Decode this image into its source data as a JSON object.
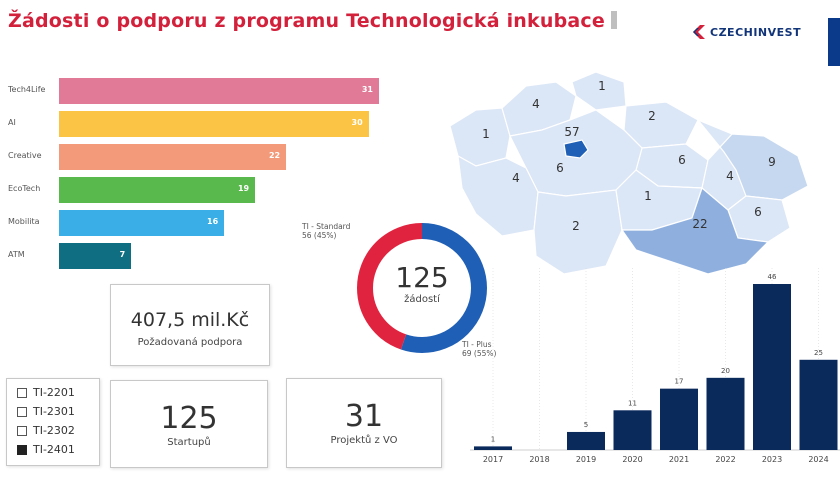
{
  "header": {
    "title": "Žádosti o podporu z programu Technologická inkubace",
    "logo_text": "CZECHINVEST",
    "brand_color": "#12357a",
    "title_color": "#d3203b"
  },
  "programs_chart": {
    "type": "bar",
    "orientation": "horizontal",
    "categories": [
      "Tech4Life",
      "AI",
      "Creative",
      "EcoTech",
      "Mobilita",
      "ATM"
    ],
    "values": [
      31,
      30,
      22,
      19,
      16,
      7
    ],
    "colors": [
      "#e07a96",
      "#fbc444",
      "#f29a7a",
      "#5ab94c",
      "#3aaee6",
      "#0f6e82"
    ],
    "xlim": [
      0,
      31
    ]
  },
  "donut": {
    "type": "pie",
    "total": "125",
    "total_label": "žádostí",
    "segments": [
      {
        "name": "TI - Standard",
        "value": 56,
        "label_value": "56 (45%)",
        "color": "#e0243f"
      },
      {
        "name": "TI - Plus",
        "value": 69,
        "label_value": "69 (55%)",
        "color": "#1f5fb5"
      }
    ]
  },
  "cards": {
    "support": {
      "value": "407,5 mil.Kč",
      "label": "Požadovaná podpora"
    },
    "startups": {
      "value": "125",
      "label": "Startupů"
    },
    "projects": {
      "value": "31",
      "label": "Projektů z VO"
    }
  },
  "legend": {
    "items": [
      {
        "label": "TI-2201",
        "checked": false
      },
      {
        "label": "TI-2301",
        "checked": false
      },
      {
        "label": "TI-2302",
        "checked": false
      },
      {
        "label": "TI-2401",
        "checked": true
      }
    ]
  },
  "map": {
    "regions": [
      {
        "value": "57"
      },
      {
        "value": "4"
      },
      {
        "value": "1"
      },
      {
        "value": "2"
      },
      {
        "value": "1"
      },
      {
        "value": "6"
      },
      {
        "value": "6"
      },
      {
        "value": "4"
      },
      {
        "value": "1"
      },
      {
        "value": "9"
      },
      {
        "value": "4"
      },
      {
        "value": "2"
      },
      {
        "value": "22"
      },
      {
        "value": "6"
      }
    ]
  },
  "chart_data": {
    "type": "bar",
    "categories": [
      "2017",
      "2018",
      "2019",
      "2020",
      "2021",
      "2022",
      "2023",
      "2024"
    ],
    "values": [
      1,
      null,
      5,
      11,
      17,
      20,
      46,
      25
    ],
    "value_labels": [
      "1",
      "",
      "5",
      "11",
      "17",
      "20",
      "46",
      "25"
    ],
    "color": "#0b2a5c",
    "ylim": [
      0,
      46
    ]
  }
}
